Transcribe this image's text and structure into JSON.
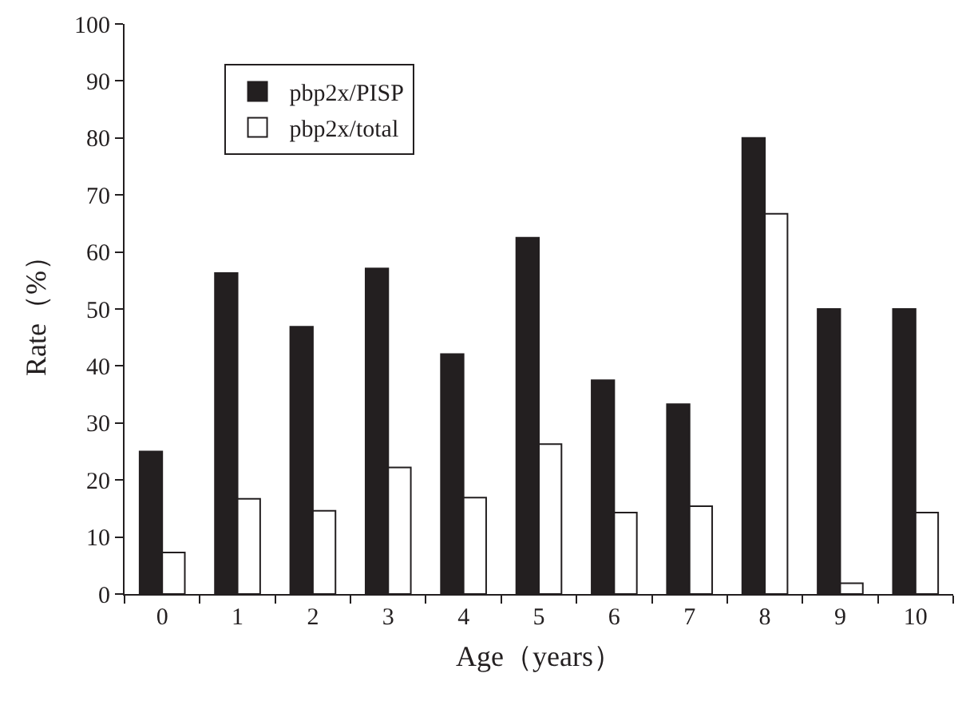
{
  "chart_data": {
    "type": "bar",
    "xlabel": "Age（years）",
    "ylabel": "Rate（%）",
    "categories": [
      "0",
      "1",
      "2",
      "3",
      "4",
      "5",
      "6",
      "7",
      "8",
      "9",
      "10"
    ],
    "series": [
      {
        "name": "pbp2x/PISP",
        "color": "#231f20",
        "values": [
          25,
          56.3,
          46.9,
          57.1,
          42.1,
          62.5,
          37.5,
          33.3,
          80,
          50,
          50
        ]
      },
      {
        "name": "pbp2x/total",
        "color": "#ffffff",
        "values": [
          7.3,
          16.7,
          14.6,
          22.2,
          16.9,
          26.3,
          14.3,
          15.4,
          66.7,
          1.9,
          14.3
        ]
      }
    ],
    "ylim": [
      0,
      100
    ],
    "yticks": [
      0,
      10,
      20,
      30,
      40,
      50,
      60,
      70,
      80,
      90,
      100
    ],
    "legend": "top left"
  }
}
